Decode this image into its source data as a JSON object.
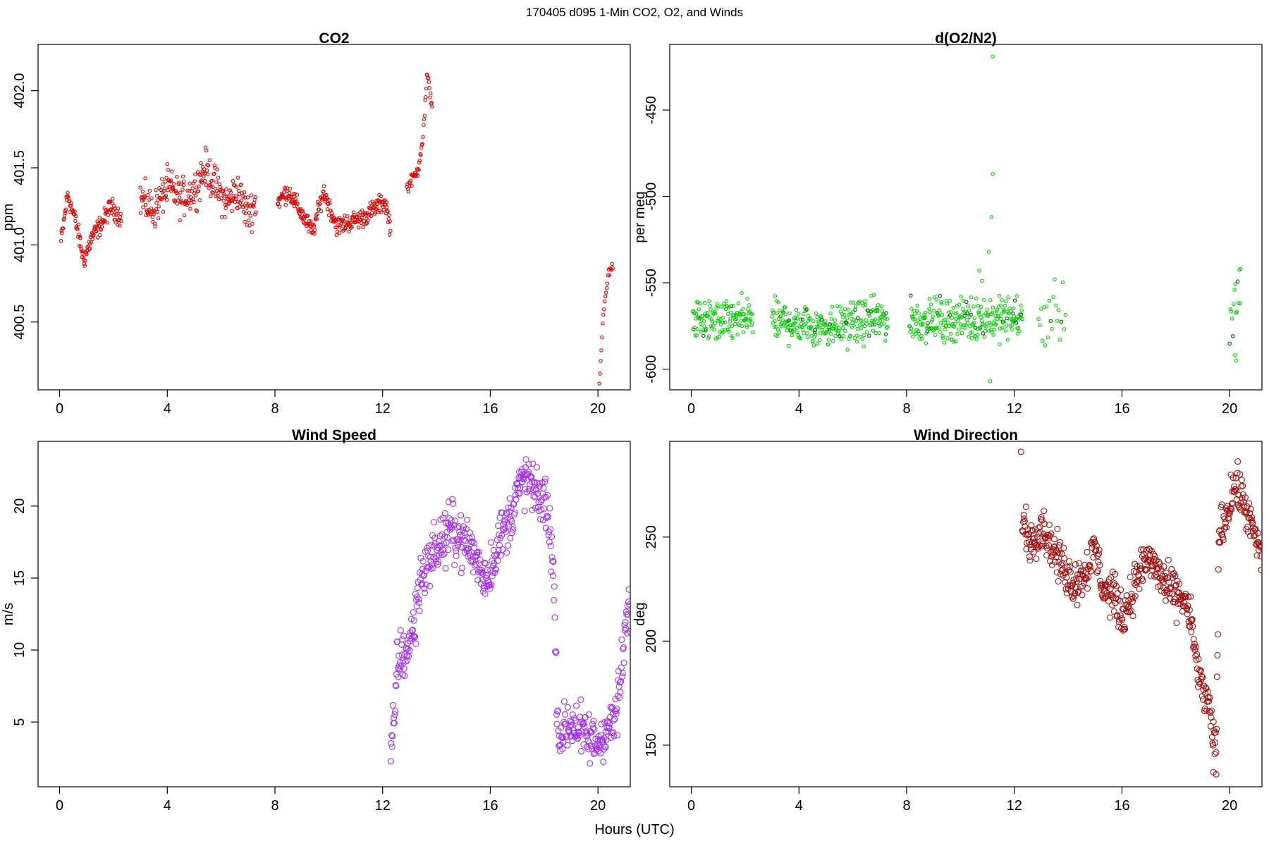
{
  "figure": {
    "title": "170405   d095   1-Min CO2, O2, and Winds",
    "xlabel": "Hours (UTC)"
  },
  "chart_data": [
    {
      "id": "co2",
      "type": "scatter",
      "title": "CO2",
      "ylabel": "ppm",
      "xlim": [
        -0.8,
        21.2
      ],
      "ylim": [
        400.06,
        402.3
      ],
      "xticks": [
        0,
        4,
        8,
        12,
        16,
        20
      ],
      "yticks": [
        400.5,
        401.0,
        401.5,
        402.0
      ],
      "ytick_labels": [
        "400.5",
        "401.0",
        "401.5",
        "402.0"
      ],
      "color": "#e00000",
      "marker_radius": 2.2,
      "segments": [
        {
          "x_start": 0.05,
          "x_end": 2.3,
          "step": 0.0167,
          "base": 401.15,
          "noise": 0.03,
          "knots": [
            [
              0.05,
              401.02
            ],
            [
              0.3,
              401.33
            ],
            [
              0.6,
              401.15
            ],
            [
              0.9,
              400.9
            ],
            [
              1.2,
              401.05
            ],
            [
              1.6,
              401.15
            ],
            [
              1.9,
              401.25
            ],
            [
              2.3,
              401.17
            ]
          ]
        },
        {
          "x_start": 3.0,
          "x_end": 7.3,
          "step": 0.0167,
          "noise": 0.06,
          "knots": [
            [
              3.0,
              401.3
            ],
            [
              3.5,
              401.22
            ],
            [
              4.0,
              401.38
            ],
            [
              4.5,
              401.3
            ],
            [
              5.0,
              401.35
            ],
            [
              5.4,
              401.5
            ],
            [
              5.8,
              401.38
            ],
            [
              6.2,
              401.27
            ],
            [
              6.6,
              401.35
            ],
            [
              7.0,
              401.2
            ],
            [
              7.3,
              401.28
            ]
          ]
        },
        {
          "x_start": 8.1,
          "x_end": 12.3,
          "step": 0.0167,
          "noise": 0.03,
          "knots": [
            [
              8.1,
              401.28
            ],
            [
              8.5,
              401.35
            ],
            [
              9.0,
              401.2
            ],
            [
              9.4,
              401.08
            ],
            [
              9.8,
              401.35
            ],
            [
              10.3,
              401.12
            ],
            [
              10.8,
              401.15
            ],
            [
              11.3,
              401.18
            ],
            [
              11.8,
              401.25
            ],
            [
              12.1,
              401.28
            ],
            [
              12.3,
              401.1
            ]
          ]
        },
        {
          "x_start": 12.9,
          "x_end": 13.85,
          "step": 0.02,
          "noise": 0.02,
          "knots": [
            [
              12.9,
              401.37
            ],
            [
              13.3,
              401.48
            ],
            [
              13.5,
              401.7
            ],
            [
              13.65,
              402.1
            ],
            [
              13.85,
              401.9
            ]
          ]
        },
        {
          "x_start": 20.05,
          "x_end": 20.55,
          "step": 0.025,
          "noise": 0.01,
          "knots": [
            [
              20.05,
              400.1
            ],
            [
              20.2,
              400.55
            ],
            [
              20.4,
              400.82
            ],
            [
              20.55,
              400.87
            ]
          ]
        }
      ]
    },
    {
      "id": "o2",
      "type": "scatter",
      "title": "d(O2/N2)",
      "ylabel": "per meg",
      "xlim": [
        -0.8,
        21.2
      ],
      "ylim": [
        -612,
        -412
      ],
      "xticks": [
        0,
        4,
        8,
        12,
        16,
        20
      ],
      "yticks": [
        -600,
        -550,
        -500,
        -450
      ],
      "ytick_labels": [
        "-600",
        "-550",
        "-500",
        "-450"
      ],
      "color": "#00d000",
      "marker_radius": 2.2,
      "segments": [
        {
          "x_start": 0.05,
          "x_end": 2.3,
          "step": 0.0167,
          "noise": 6,
          "knots": [
            [
              0.05,
              -571
            ],
            [
              1.2,
              -573
            ],
            [
              2.3,
              -570
            ]
          ]
        },
        {
          "x_start": 3.0,
          "x_end": 7.3,
          "step": 0.0167,
          "noise": 6,
          "knots": [
            [
              3.0,
              -572
            ],
            [
              5.0,
              -575
            ],
            [
              7.3,
              -571
            ]
          ]
        },
        {
          "x_start": 8.1,
          "x_end": 12.3,
          "step": 0.0167,
          "noise": 6,
          "knots": [
            [
              8.1,
              -572
            ],
            [
              10.0,
              -571
            ],
            [
              12.3,
              -570
            ]
          ]
        },
        {
          "x_start": 12.9,
          "x_end": 13.9,
          "step": 0.05,
          "noise": 8,
          "knots": [
            [
              12.9,
              -568
            ],
            [
              13.9,
              -568
            ]
          ]
        },
        {
          "x_start": 20.0,
          "x_end": 20.4,
          "step": 0.03,
          "noise": 12,
          "knots": [
            [
              20.0,
              -568
            ],
            [
              20.4,
              -565
            ]
          ]
        }
      ],
      "extra_points": [
        [
          10.7,
          -543
        ],
        [
          10.8,
          -549
        ],
        [
          11.05,
          -532
        ],
        [
          11.15,
          -512
        ],
        [
          11.2,
          -487
        ],
        [
          11.2,
          -419
        ],
        [
          11.1,
          -607
        ],
        [
          20.2,
          -592
        ],
        [
          20.25,
          -595
        ],
        [
          20.4,
          -542
        ]
      ]
    },
    {
      "id": "wspd",
      "type": "scatter",
      "title": "Wind Speed",
      "ylabel": "m/s",
      "xlim": [
        -0.8,
        21.2
      ],
      "ylim": [
        0.5,
        24.5
      ],
      "xticks": [
        0,
        4,
        8,
        12,
        16,
        20
      ],
      "yticks": [
        5,
        10,
        15,
        20
      ],
      "ytick_labels": [
        "5",
        "10",
        "15",
        "20"
      ],
      "color": "#a030f0",
      "marker_radius": 4,
      "segments": [
        {
          "x_start": 12.3,
          "x_end": 21.2,
          "step": 0.0167,
          "noise": 0.9,
          "knots": [
            [
              12.3,
              2.5
            ],
            [
              12.45,
              5.5
            ],
            [
              12.55,
              9.5
            ],
            [
              12.9,
              9.8
            ],
            [
              13.2,
              12
            ],
            [
              13.4,
              15
            ],
            [
              13.8,
              16.5
            ],
            [
              14.2,
              17.5
            ],
            [
              14.6,
              18.5
            ],
            [
              15.0,
              17.5
            ],
            [
              15.3,
              17
            ],
            [
              15.8,
              15
            ],
            [
              16.0,
              15.5
            ],
            [
              16.3,
              17.5
            ],
            [
              16.7,
              19
            ],
            [
              17.0,
              21
            ],
            [
              17.4,
              22
            ],
            [
              17.7,
              20.5
            ],
            [
              18.0,
              20.5
            ],
            [
              18.2,
              19
            ],
            [
              18.35,
              15
            ],
            [
              18.45,
              8
            ],
            [
              18.55,
              4
            ],
            [
              18.8,
              4.5
            ],
            [
              19.1,
              5
            ],
            [
              19.5,
              4
            ],
            [
              20.0,
              3.5
            ],
            [
              20.3,
              4.5
            ],
            [
              20.6,
              5
            ],
            [
              20.8,
              7
            ],
            [
              21.0,
              11
            ],
            [
              21.2,
              13.5
            ]
          ]
        }
      ]
    },
    {
      "id": "wdir",
      "type": "scatter",
      "title": "Wind Direction",
      "ylabel": "deg",
      "xlim": [
        -0.8,
        21.2
      ],
      "ylim": [
        130,
        296
      ],
      "xticks": [
        0,
        4,
        8,
        12,
        16,
        20
      ],
      "yticks": [
        150,
        200,
        250
      ],
      "ytick_labels": [
        "150",
        "200",
        "250"
      ],
      "color": "#a01010",
      "marker_radius": 4,
      "segments": [
        {
          "x_start": 12.3,
          "x_end": 21.2,
          "step": 0.0167,
          "noise": 5,
          "knots": [
            [
              12.3,
              258
            ],
            [
              12.6,
              248
            ],
            [
              13.0,
              256
            ],
            [
              13.4,
              245
            ],
            [
              13.8,
              236
            ],
            [
              14.2,
              228
            ],
            [
              14.6,
              232
            ],
            [
              15.0,
              245
            ],
            [
              15.3,
              225
            ],
            [
              15.7,
              222
            ],
            [
              16.0,
              212
            ],
            [
              16.3,
              220
            ],
            [
              16.6,
              232
            ],
            [
              17.0,
              240
            ],
            [
              17.3,
              234
            ],
            [
              17.7,
              225
            ],
            [
              18.1,
              222
            ],
            [
              18.4,
              218
            ],
            [
              18.6,
              205
            ],
            [
              18.9,
              180
            ],
            [
              19.2,
              170
            ],
            [
              19.4,
              152
            ],
            [
              19.5,
              148
            ],
            [
              19.6,
              250
            ],
            [
              19.9,
              262
            ],
            [
              20.2,
              275
            ],
            [
              20.5,
              268
            ],
            [
              20.8,
              255
            ],
            [
              21.2,
              240
            ]
          ]
        }
      ],
      "extra_points": [
        [
          12.25,
          291
        ],
        [
          19.4,
          137
        ],
        [
          19.5,
          136
        ]
      ]
    }
  ]
}
